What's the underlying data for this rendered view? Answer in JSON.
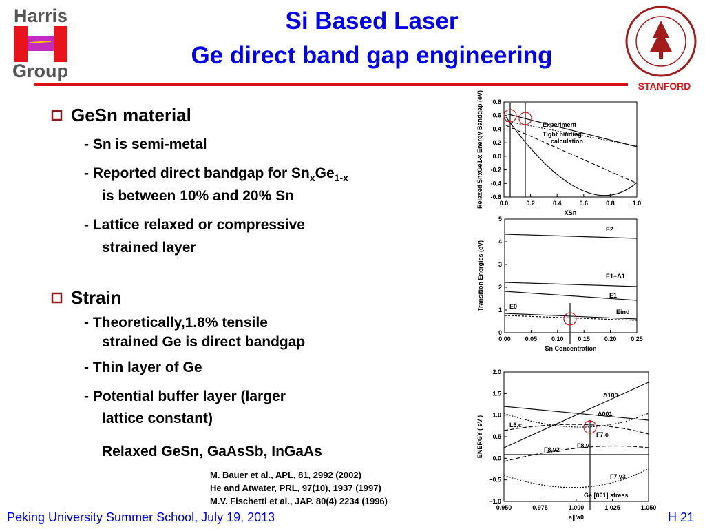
{
  "header": {
    "title_lines": [
      "Si Based Laser",
      "Ge direct band gap engineering"
    ],
    "logo_left": [
      "Harris",
      "Group"
    ],
    "logo_right": "STANFORD"
  },
  "body": {
    "bullets": [
      {
        "heading": "GeSn material",
        "items": [
          {
            "lines": [
              [
                "- Sn is semi-metal"
              ]
            ]
          },
          {
            "lines": [
              [
                "- Reported direct bandgap for Sn",
                "x",
                "Ge",
                "1-x"
              ],
              [
                "is between 10% and 20% Sn"
              ]
            ]
          },
          {
            "lines": [
              [
                "- Lattice relaxed or compressive"
              ],
              [
                "strained layer"
              ]
            ]
          }
        ]
      },
      {
        "heading": "Strain",
        "items": [
          {
            "lines": [
              [
                "- Theoretically,1.8% tensile"
              ],
              [
                "strained Ge is direct bandgap"
              ]
            ]
          },
          {
            "lines": [
              [
                "- Thin layer of Ge"
              ]
            ]
          },
          {
            "lines": [
              [
                "- Potential buffer layer (larger"
              ],
              [
                "lattice constant)"
              ]
            ]
          }
        ],
        "note": "Relaxed GeSn, GaAsSb, InGaAs"
      }
    ]
  },
  "references": [
    "M. Bauer et al., APL, 81, 2992 (2002)",
    "He and Atwater, PRL, 97(10), 1937 (1997)",
    "M.V. Fischetti et al., JAP. 80(4) 2234 (1996)"
  ],
  "footer": {
    "left": "Peking University Summer School, July 19, 2013",
    "right": "H 21"
  },
  "figures": [
    {
      "y_label": "Relaxed SnxGe1-x Energy Bandgap (eV)",
      "x_label": "XSn",
      "y_ticks": [
        "0.8",
        "0.6",
        "0.4",
        "0.2",
        "0.0",
        "-0.2",
        "-0.4",
        "-0.6"
      ],
      "x_ticks": [
        "0.0",
        "0.2",
        "0.4",
        "0.6",
        "0.8",
        "1.0"
      ],
      "labels": [
        "Experiment",
        "Tight binding",
        "calculation"
      ]
    },
    {
      "y_label": "Transition Energies (eV)",
      "x_label": "Sn Concentration",
      "y_ticks": [
        "5",
        "4",
        "3",
        "2",
        "1",
        "0"
      ],
      "x_ticks": [
        "0.00",
        "0.05",
        "0.10",
        "0.15",
        "0.20",
        "0.25"
      ],
      "labels": [
        "E2",
        "E1+Δ1",
        "E1",
        "E0",
        "Eind"
      ]
    },
    {
      "y_label": "ENERGY ( eV )",
      "x_label": "a∥/a0",
      "y_ticks": [
        "2.0",
        "1.5",
        "1.0",
        "0.5",
        "0.0",
        "−0.5",
        "−1.0"
      ],
      "x_ticks": [
        "0.950",
        "0.975",
        "1.000",
        "1.025",
        "1.050"
      ],
      "labels": [
        "Δ100",
        "Δ001",
        "L6,c",
        "Γ7,c",
        "Γ8,v",
        "Γ8,v2",
        "Γ7,v3",
        "Ge [001] stress"
      ]
    }
  ]
}
